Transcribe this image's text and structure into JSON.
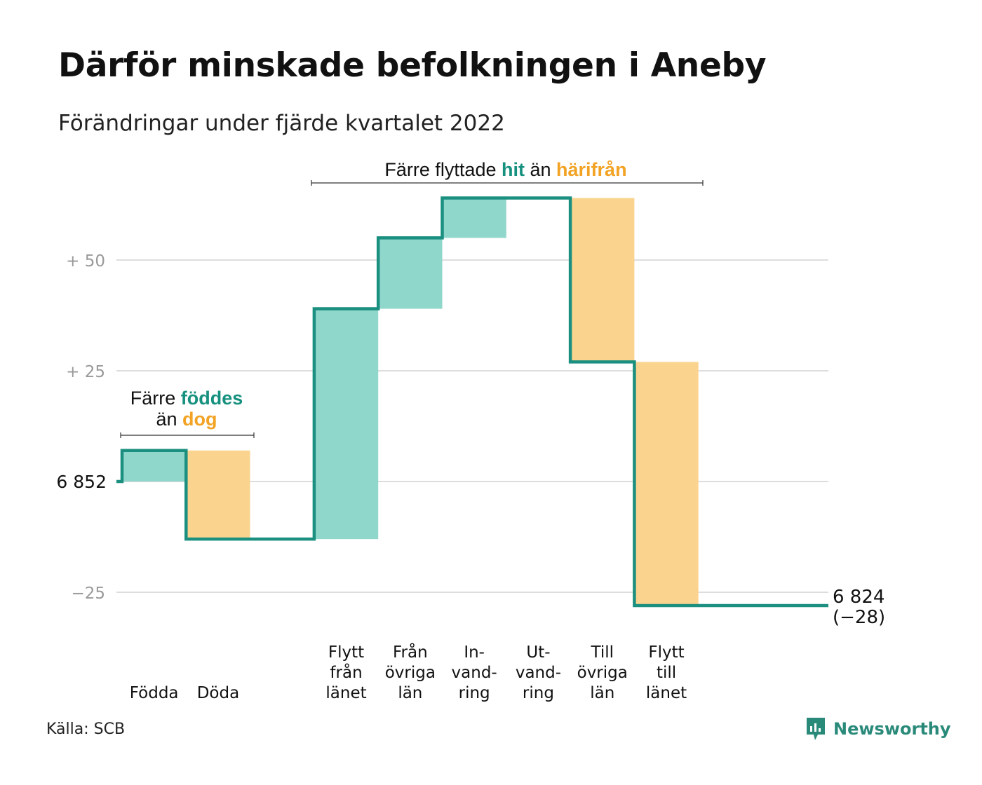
{
  "header": {
    "title": "Därför minskade befolkningen i Aneby",
    "subtitle": "Förändringar under fjärde kvartalet 2022"
  },
  "footer": {
    "source": "Källa: SCB",
    "brand": "Newsworthy"
  },
  "colors": {
    "increase": "#8fd6cb",
    "decrease": "#fad48e",
    "line": "#1b8f80",
    "accent_teal": "#17917f",
    "accent_orange": "#f2a324",
    "grid": "#dddddd"
  },
  "annotations": {
    "births": {
      "line1_prefix": "Färre ",
      "line1_emph": "föddes",
      "line2_prefix": "än ",
      "line2_emph": "dog"
    },
    "migration": {
      "prefix": "Färre flyttade ",
      "emph1": "hit",
      "middle": " än ",
      "emph2": "härifrån"
    }
  },
  "chart_data": {
    "type": "waterfall",
    "start_value": 6852,
    "start_label": "6 852",
    "end_value": 6824,
    "end_label_line1": "6 824",
    "end_label_line2": "(−28)",
    "ylim": [
      -36,
      64
    ],
    "y_ticks": [
      {
        "value": 50,
        "label": "+ 50"
      },
      {
        "value": 25,
        "label": "+ 25"
      },
      {
        "value": 0,
        "label": "6 852"
      },
      {
        "value": -25,
        "label": "−25"
      }
    ],
    "steps": [
      {
        "label_lines": [
          "",
          "",
          "Födda"
        ],
        "change": 7
      },
      {
        "label_lines": [
          "",
          "",
          "Döda"
        ],
        "change": -20
      },
      {
        "label_lines": [],
        "change": 0
      },
      {
        "label_lines": [
          "Flytt",
          "från",
          "länet"
        ],
        "change": 52
      },
      {
        "label_lines": [
          "Från",
          "övriga",
          "län"
        ],
        "change": 16
      },
      {
        "label_lines": [
          "In-",
          "vand-",
          "ring"
        ],
        "change": 9
      },
      {
        "label_lines": [
          "Ut-",
          "vand-",
          "ring"
        ],
        "change": 0
      },
      {
        "label_lines": [
          "Till",
          "övriga",
          "län"
        ],
        "change": -37
      },
      {
        "label_lines": [
          "Flytt",
          "till",
          "länet"
        ],
        "change": -55
      },
      {
        "label_lines": [],
        "change": 0
      }
    ]
  }
}
